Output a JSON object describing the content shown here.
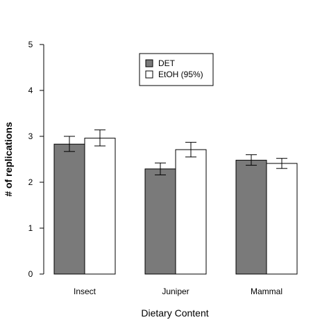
{
  "chart_data": {
    "type": "bar",
    "title": "",
    "xlabel": "Dietary Content",
    "ylabel": "# of replications",
    "ylim": [
      0,
      5
    ],
    "yticks": [
      "0",
      "1",
      "2",
      "3",
      "4",
      "5"
    ],
    "categories": [
      "Insect",
      "Juniper",
      "Mammal"
    ],
    "series": [
      {
        "name": "DET",
        "color": "#7a7a7a",
        "values": [
          2.83,
          2.29,
          2.48
        ],
        "err_low": [
          2.67,
          2.16,
          2.37
        ],
        "err_high": [
          3.0,
          2.42,
          2.6
        ]
      },
      {
        "name": "EtOH (95%)",
        "color": "#ffffff",
        "values": [
          2.96,
          2.71,
          2.41
        ],
        "err_low": [
          2.79,
          2.55,
          2.3
        ],
        "err_high": [
          3.14,
          2.87,
          2.52
        ]
      }
    ],
    "grid": false,
    "legend_position": "top-center"
  }
}
